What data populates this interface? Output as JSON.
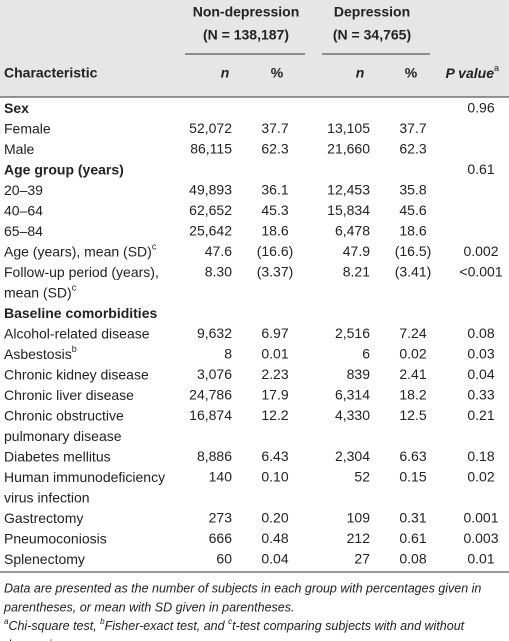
{
  "header": {
    "group1": "Non-depression",
    "group1_n": "(N = 138,187)",
    "group2": "Depression",
    "group2_n": "(N = 34,765)",
    "col_label": "Characteristic",
    "col_n1": "n",
    "col_pct1": "%",
    "col_n2": "n",
    "col_pct2": "%",
    "col_p": "P value",
    "col_p_note": "a"
  },
  "table": {
    "rows": [
      {
        "label": [
          "Sex"
        ],
        "bold": true,
        "p": "0.96"
      },
      {
        "label": [
          "Female"
        ],
        "n1": "52,072",
        "pct1": "37.7",
        "n2": "13,105",
        "pct2": "37.7"
      },
      {
        "label": [
          "Male"
        ],
        "n1": "86,115",
        "pct1": "62.3",
        "n2": "21,660",
        "pct2": "62.3"
      },
      {
        "label": [
          "Age group (years)"
        ],
        "bold": true,
        "p": "0.61"
      },
      {
        "label": [
          "20–39"
        ],
        "n1": "49,893",
        "pct1": "36.1",
        "n2": "12,453",
        "pct2": "35.8"
      },
      {
        "label": [
          "40–64"
        ],
        "n1": "62,652",
        "pct1": "45.3",
        "n2": "15,834",
        "pct2": "45.6"
      },
      {
        "label": [
          "65–84"
        ],
        "n1": "25,642",
        "pct1": "18.6",
        "n2": "6,478",
        "pct2": "18.6"
      },
      {
        "label": [
          "Age (years), mean (SD)"
        ],
        "note": "c",
        "n1": "47.6",
        "pct1": "(16.6)",
        "n2": "47.9",
        "pct2": "(16.5)",
        "p": "0.002"
      },
      {
        "label": [
          "Follow-up period (years),",
          "mean (SD)"
        ],
        "note": "c",
        "n1": "8.30",
        "pct1": "(3.37)",
        "n2": "8.21",
        "pct2": "(3.41)",
        "p": "<0.001"
      },
      {
        "label": [
          "Baseline comorbidities"
        ],
        "bold": true
      },
      {
        "label": [
          "Alcohol-related disease"
        ],
        "n1": "9,632",
        "pct1": "6.97",
        "n2": "2,516",
        "pct2": "7.24",
        "p": "0.08"
      },
      {
        "label": [
          "Asbestosis"
        ],
        "note": "b",
        "n1": "8",
        "pct1": "0.01",
        "n2": "6",
        "pct2": "0.02",
        "p": "0.03"
      },
      {
        "label": [
          "Chronic kidney disease"
        ],
        "n1": "3,076",
        "pct1": "2.23",
        "n2": "839",
        "pct2": "2.41",
        "p": "0.04"
      },
      {
        "label": [
          "Chronic liver disease"
        ],
        "n1": "24,786",
        "pct1": "17.9",
        "n2": "6,314",
        "pct2": "18.2",
        "p": "0.33"
      },
      {
        "label": [
          "Chronic obstructive",
          "pulmonary disease"
        ],
        "n1": "16,874",
        "pct1": "12.2",
        "n2": "4,330",
        "pct2": "12.5",
        "p": "0.21"
      },
      {
        "label": [
          "Diabetes mellitus"
        ],
        "n1": "8,886",
        "pct1": "6.43",
        "n2": "2,304",
        "pct2": "6.63",
        "p": "0.18"
      },
      {
        "label": [
          "Human immunodeficiency",
          "virus infection"
        ],
        "n1": "140",
        "pct1": "0.10",
        "n2": "52",
        "pct2": "0.15",
        "p": "0.02"
      },
      {
        "label": [
          "Gastrectomy"
        ],
        "n1": "273",
        "pct1": "0.20",
        "n2": "109",
        "pct2": "0.31",
        "p": "0.001"
      },
      {
        "label": [
          "Pneumoconiosis"
        ],
        "n1": "666",
        "pct1": "0.48",
        "n2": "212",
        "pct2": "0.61",
        "p": "0.003"
      },
      {
        "label": [
          "Splenectomy"
        ],
        "n1": "60",
        "pct1": "0.04",
        "n2": "27",
        "pct2": "0.08",
        "p": "0.01"
      }
    ]
  },
  "footnote": {
    "lines": [
      "Data are presented as the number of subjects in each group with percentages given in",
      "parentheses, or mean with SD given in parentheses."
    ],
    "notes": [
      [
        {
          "sup": "a",
          "text": "Chi-square test, "
        },
        {
          "sup": "b",
          "text": "Fisher-exact test, and "
        },
        {
          "sup": "c",
          "text": "t-test comparing subjects with and without"
        }
      ],
      [
        {
          "text": "depression."
        }
      ]
    ]
  }
}
